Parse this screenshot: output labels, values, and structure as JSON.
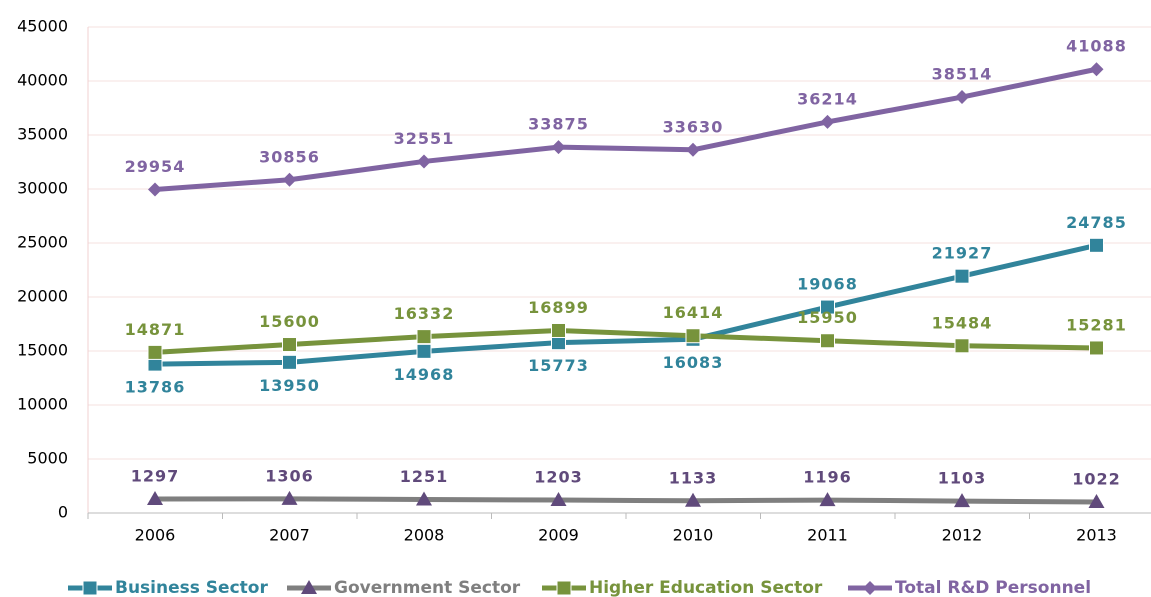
{
  "chart_data": {
    "type": "line",
    "categories": [
      "2006",
      "2007",
      "2008",
      "2009",
      "2010",
      "2011",
      "2012",
      "2013"
    ],
    "series": [
      {
        "name": "Business Sector",
        "color": "#31849b",
        "marker": "square",
        "marker_color": "#31849b",
        "values": [
          13786,
          13950,
          14968,
          15773,
          16083,
          19068,
          21927,
          24785
        ]
      },
      {
        "name": "Government Sector",
        "color": "#7f7f7f",
        "marker": "triangle",
        "marker_color": "#604a7b",
        "label_color": "#604a7b",
        "values": [
          1297,
          1306,
          1251,
          1203,
          1133,
          1196,
          1103,
          1022
        ]
      },
      {
        "name": "Higher Education Sector",
        "color": "#77933c",
        "marker": "square",
        "marker_color": "#77933c",
        "values": [
          14871,
          15600,
          16332,
          16899,
          16414,
          15950,
          15484,
          15281
        ]
      },
      {
        "name": "Total R&D Personnel",
        "color": "#8064a2",
        "marker": "diamond",
        "marker_color": "#8064a2",
        "values": [
          29954,
          30856,
          32551,
          33875,
          33630,
          36214,
          38514,
          41088
        ]
      }
    ],
    "ylim": [
      0,
      45000
    ],
    "yticks": [
      0,
      5000,
      10000,
      15000,
      20000,
      25000,
      30000,
      35000,
      40000,
      45000
    ],
    "grid": true,
    "legend": "bottom"
  }
}
